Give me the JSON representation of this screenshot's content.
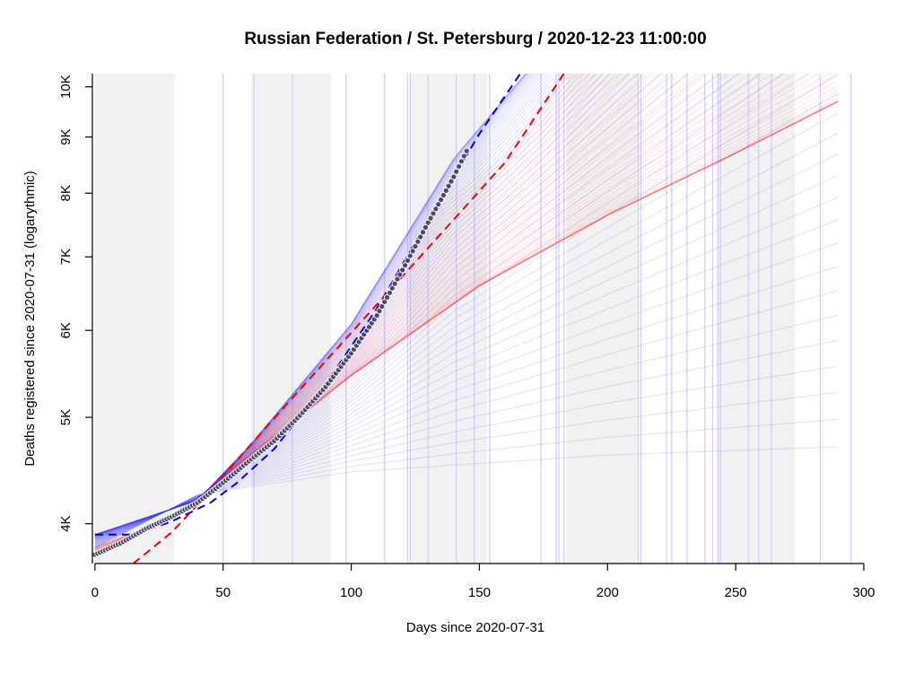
{
  "chart_data": {
    "type": "line",
    "title": "Russian Federation / St. Petersburg / 2020-12-23 11:00:00",
    "xlabel": "Days since 2020-07-31",
    "ylabel": "Deaths registered since 2020-07-31 (logarythmic)",
    "y_scale": "log",
    "xlim": [
      -1,
      300
    ],
    "ylim": [
      3680,
      10280
    ],
    "x_ticks": [
      {
        "value": 0,
        "label": "0"
      },
      {
        "value": 50,
        "label": "50"
      },
      {
        "value": 100,
        "label": "100"
      },
      {
        "value": 150,
        "label": "150"
      },
      {
        "value": 200,
        "label": "200"
      },
      {
        "value": 250,
        "label": "250"
      },
      {
        "value": 300,
        "label": "300"
      }
    ],
    "y_ticks": [
      {
        "value": 4000,
        "label": "4K"
      },
      {
        "value": 5000,
        "label": "5K"
      },
      {
        "value": 6000,
        "label": "6K"
      },
      {
        "value": 7000,
        "label": "7K"
      },
      {
        "value": 8000,
        "label": "8K"
      },
      {
        "value": 9000,
        "label": "9K"
      },
      {
        "value": 10000,
        "label": "10K"
      }
    ],
    "shaded_bands": [
      [
        0,
        31
      ],
      [
        61,
        92
      ],
      [
        123,
        153
      ],
      [
        184,
        212
      ],
      [
        243,
        273
      ]
    ],
    "vertical_lines": [
      50,
      62,
      77,
      98,
      113,
      122,
      123,
      130,
      141,
      148,
      154,
      174,
      180,
      181,
      183,
      212,
      213,
      223,
      225,
      231,
      238,
      241,
      243,
      244,
      255,
      259,
      264,
      283,
      295
    ],
    "observed": {
      "x_start": 0,
      "x_end": 145,
      "anchors": [
        [
          0,
          3750
        ],
        [
          10,
          3840
        ],
        [
          20,
          3960
        ],
        [
          30,
          4060
        ],
        [
          40,
          4180
        ],
        [
          50,
          4360
        ],
        [
          60,
          4560
        ],
        [
          70,
          4760
        ],
        [
          80,
          5020
        ],
        [
          90,
          5330
        ],
        [
          100,
          5720
        ],
        [
          110,
          6190
        ],
        [
          120,
          6810
        ],
        [
          130,
          7520
        ],
        [
          140,
          8280
        ],
        [
          145,
          8740
        ]
      ],
      "point_fill": "#4a4a6a",
      "point_stroke": "#ffffff"
    },
    "fit_upper_dashed": {
      "color": "#0000cc",
      "anchors": [
        [
          0,
          3910
        ],
        [
          15,
          3910
        ],
        [
          30,
          4020
        ],
        [
          45,
          4180
        ],
        [
          55,
          4350
        ],
        [
          70,
          4680
        ],
        [
          90,
          5360
        ],
        [
          110,
          6280
        ],
        [
          130,
          7560
        ],
        [
          150,
          9060
        ],
        [
          166,
          10280
        ]
      ]
    },
    "fit_lower_dashed": {
      "color": "#ee0000",
      "anchors": [
        [
          15,
          3680
        ],
        [
          30,
          3930
        ],
        [
          40,
          4160
        ],
        [
          60,
          4700
        ],
        [
          80,
          5300
        ],
        [
          100,
          5970
        ],
        [
          120,
          6720
        ],
        [
          140,
          7570
        ],
        [
          160,
          8530
        ],
        [
          183,
          10280
        ]
      ]
    },
    "ensemble_red": {
      "color": "#ff3030",
      "anchors_low": [
        [
          0,
          3750
        ],
        [
          30,
          4040
        ],
        [
          40,
          4220
        ],
        [
          60,
          4600
        ],
        [
          100,
          5460
        ],
        [
          150,
          6590
        ],
        [
          200,
          7640
        ],
        [
          250,
          8700
        ],
        [
          290,
          9700
        ]
      ],
      "anchors_high": [
        [
          0,
          3810
        ],
        [
          30,
          4050
        ],
        [
          40,
          4200
        ],
        [
          60,
          4700
        ],
        [
          100,
          6020
        ],
        [
          130,
          7600
        ],
        [
          160,
          8650
        ],
        [
          183,
          10280
        ]
      ],
      "count": 40
    },
    "ensemble_blue": {
      "color": "#3c3cff",
      "anchors_top": [
        [
          0,
          3910
        ],
        [
          40,
          4200
        ],
        [
          60,
          4700
        ],
        [
          100,
          6080
        ],
        [
          140,
          8600
        ],
        [
          168,
          10280
        ]
      ],
      "anchors_bottom": [
        [
          0,
          3800
        ],
        [
          40,
          4250
        ],
        [
          60,
          4320
        ],
        [
          100,
          4460
        ],
        [
          200,
          4620
        ],
        [
          290,
          4700
        ]
      ],
      "count": 60
    },
    "x_end": 290
  }
}
